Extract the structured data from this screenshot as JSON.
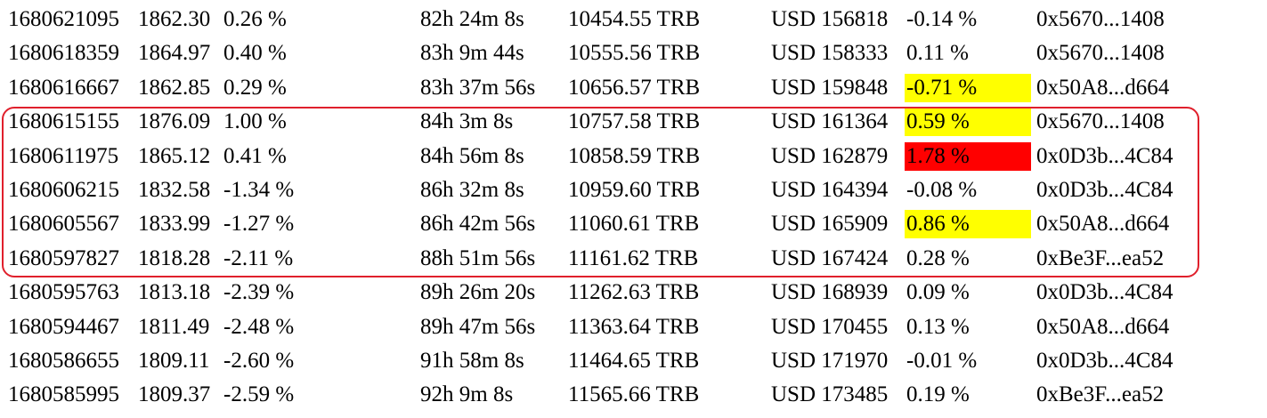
{
  "rows": [
    {
      "timestamp": "1680621095",
      "price": "1862.30",
      "change": "0.26 %",
      "duration": "82h 24m 8s",
      "amount": "10454.55 TRB",
      "usd": "USD 156818",
      "pct": "-0.14 %",
      "pct_highlight": "none",
      "address": "0x5670...1408"
    },
    {
      "timestamp": "1680618359",
      "price": "1864.97",
      "change": "0.40 %",
      "duration": "83h 9m 44s",
      "amount": "10555.56 TRB",
      "usd": "USD 158333",
      "pct": "0.11 %",
      "pct_highlight": "none",
      "address": "0x5670...1408"
    },
    {
      "timestamp": "1680616667",
      "price": "1862.85",
      "change": "0.29 %",
      "duration": "83h 37m 56s",
      "amount": "10656.57 TRB",
      "usd": "USD 159848",
      "pct": "-0.71 %",
      "pct_highlight": "yellow",
      "address": "0x50A8...d664"
    },
    {
      "timestamp": "1680615155",
      "price": "1876.09",
      "change": "1.00 %",
      "duration": "84h 3m 8s",
      "amount": "10757.58 TRB",
      "usd": "USD 161364",
      "pct": "0.59 %",
      "pct_highlight": "yellow",
      "address": "0x5670...1408"
    },
    {
      "timestamp": "1680611975",
      "price": "1865.12",
      "change": "0.41 %",
      "duration": "84h 56m 8s",
      "amount": "10858.59 TRB",
      "usd": "USD 162879",
      "pct": "1.78 %",
      "pct_highlight": "red",
      "address": "0x0D3b...4C84"
    },
    {
      "timestamp": "1680606215",
      "price": "1832.58",
      "change": "-1.34 %",
      "duration": "86h 32m 8s",
      "amount": "10959.60 TRB",
      "usd": "USD 164394",
      "pct": "-0.08 %",
      "pct_highlight": "none",
      "address": "0x0D3b...4C84"
    },
    {
      "timestamp": "1680605567",
      "price": "1833.99",
      "change": "-1.27 %",
      "duration": "86h 42m 56s",
      "amount": "11060.61 TRB",
      "usd": "USD 165909",
      "pct": "0.86 %",
      "pct_highlight": "yellow",
      "address": "0x50A8...d664"
    },
    {
      "timestamp": "1680597827",
      "price": "1818.28",
      "change": "-2.11 %",
      "duration": "88h 51m 56s",
      "amount": "11161.62 TRB",
      "usd": "USD 167424",
      "pct": "0.28 %",
      "pct_highlight": "none",
      "address": "0xBe3F...ea52"
    },
    {
      "timestamp": "1680595763",
      "price": "1813.18",
      "change": "-2.39 %",
      "duration": "89h 26m 20s",
      "amount": "11262.63 TRB",
      "usd": "USD 168939",
      "pct": "0.09 %",
      "pct_highlight": "none",
      "address": "0x0D3b...4C84"
    },
    {
      "timestamp": "1680594467",
      "price": "1811.49",
      "change": "-2.48 %",
      "duration": "89h 47m 56s",
      "amount": "11363.64 TRB",
      "usd": "USD 170455",
      "pct": "0.13 %",
      "pct_highlight": "none",
      "address": "0x50A8...d664"
    },
    {
      "timestamp": "1680586655",
      "price": "1809.11",
      "change": "-2.60 %",
      "duration": "91h 58m 8s",
      "amount": "11464.65 TRB",
      "usd": "USD 171970",
      "pct": "-0.01 %",
      "pct_highlight": "none",
      "address": "0x0D3b...4C84"
    },
    {
      "timestamp": "1680585995",
      "price": "1809.37",
      "change": "-2.59 %",
      "duration": "92h 9m 8s",
      "amount": "11565.66 TRB",
      "usd": "USD 173485",
      "pct": "0.19 %",
      "pct_highlight": "none",
      "address": "0xBe3F...ea52"
    }
  ],
  "highlight_colors": {
    "yellow": "#ffff00",
    "red": "#ff0000",
    "box_outline": "#e0202c"
  },
  "annotation": {
    "outlined_rows": [
      3,
      4,
      5,
      6,
      7
    ]
  }
}
